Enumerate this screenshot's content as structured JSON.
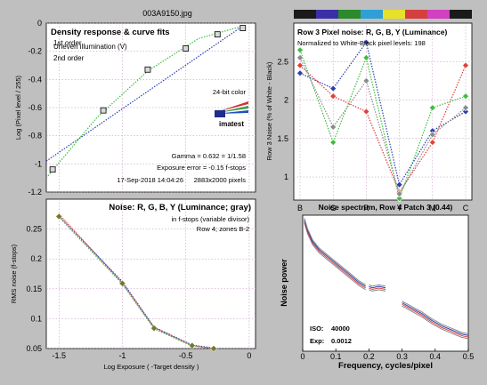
{
  "figure_title": "003A9150.jpg",
  "colors": {
    "figure_bg": "#bfbfbf",
    "panel_bg": "#ffffff",
    "grid": "#b98ab9",
    "red": "#e0403a",
    "green": "#3cbf3c",
    "blue": "#2c3fb0",
    "gray": "#8a8a8a",
    "olive": "#6f7a2b",
    "maroon": "#8b1a4a",
    "pink": "#e8a0a0",
    "strip": [
      "#1a1a1a",
      "#3b2fa8",
      "#2b8a2b",
      "#2f9fd6",
      "#e8e02a",
      "#d43f3f",
      "#d040c0",
      "#1a1a1a"
    ]
  },
  "chart_data": [
    {
      "id": "density",
      "type": "scatter",
      "title": "Density response & curve fits",
      "legend": [
        "1st order",
        "2nd order"
      ],
      "legend_overlay": "Uneven illumination (V)",
      "annotation_color": "24-bit color",
      "logo": "imatest",
      "xlabel": "",
      "ylabel": "Log (Pixel level / 255)",
      "xlim": [
        -1.6,
        0.05
      ],
      "ylim": [
        -1.2,
        0.0
      ],
      "xticks": [],
      "yticks": [
        0,
        -0.2,
        -0.4,
        -0.6,
        -0.8,
        -1,
        -1.2
      ],
      "ytick_labels": [
        "0",
        "-0.2",
        "-0.4",
        "-0.6",
        "-0.8",
        "-1",
        "-1.2"
      ],
      "gamma_text": "Gamma = 0.632 = 1/1.58",
      "exposure_text": "Exposure error = -0.15 f-stops",
      "date_text": "17-Sep-2018 14:04:26",
      "size_text": "2883x2000 pixels",
      "series": [
        {
          "name": "",
          "x": [
            -1.55,
            -1.15,
            -0.8,
            -0.5,
            -0.25,
            -0.05
          ],
          "y": [
            -1.04,
            -0.62,
            -0.33,
            -0.18,
            -0.08,
            -0.035
          ]
        }
      ],
      "fit_lines": [
        {
          "name": "1st order",
          "x": [
            -1.6,
            -0.05
          ],
          "y": [
            -0.98,
            -0.02
          ]
        },
        {
          "name": "2nd order",
          "x": [
            -1.6,
            -1.2,
            -0.8,
            -0.4,
            -0.05
          ],
          "y": [
            -1.1,
            -0.67,
            -0.34,
            -0.11,
            -0.02
          ]
        }
      ]
    },
    {
      "id": "row3-noise",
      "type": "line",
      "title": "Row 3 Pixel noise: R, G, B, Y (Luminance)",
      "subtitle": "Normalized to White-Black pixel levels: 198",
      "ylabel": "Row 3 Noise (% of White - Black)",
      "categories": [
        "B",
        "G",
        "R",
        "Y",
        "M",
        "C"
      ],
      "ylim": [
        0.7,
        3.0
      ],
      "yticks": [
        1,
        1.5,
        2,
        2.5
      ],
      "ytick_labels": [
        "1",
        "1.5",
        "2",
        "2.5"
      ],
      "series": [
        {
          "name": "R",
          "values": [
            2.45,
            2.05,
            1.85,
            0.8,
            1.45,
            2.45
          ]
        },
        {
          "name": "G",
          "values": [
            2.65,
            1.45,
            2.55,
            0.72,
            1.9,
            2.05
          ]
        },
        {
          "name": "B",
          "values": [
            2.35,
            2.15,
            2.75,
            0.9,
            1.6,
            1.85
          ]
        },
        {
          "name": "Y",
          "values": [
            2.55,
            1.65,
            2.25,
            0.78,
            1.55,
            1.9
          ]
        }
      ]
    },
    {
      "id": "noise-fstops",
      "type": "line",
      "title": "Noise: R, G, B, Y (Luminance; gray)",
      "subtitle": "in f-stops (variable divisor)",
      "subtitle2": "Row 4; zones B-2",
      "xlabel": "Log Exposure ( -Target density )",
      "ylabel": "RMS noise (f-stops)",
      "xlim": [
        -1.6,
        0.05
      ],
      "ylim": [
        0.05,
        0.3
      ],
      "xticks": [
        -1.5,
        -1,
        -0.5,
        0
      ],
      "xtick_labels": [
        "-1.5",
        "-1",
        "-0.5",
        "0"
      ],
      "yticks": [
        0.05,
        0.1,
        0.15,
        0.2,
        0.25
      ],
      "ytick_labels": [
        "0.05",
        "0.1",
        "0.15",
        "0.2",
        "0.25"
      ],
      "x": [
        -1.5,
        -1.0,
        -0.75,
        -0.45,
        -0.28
      ],
      "series": [
        {
          "name": "R",
          "values": [
            0.275,
            0.16,
            0.085,
            0.055,
            0.05
          ]
        },
        {
          "name": "G",
          "values": [
            0.27,
            0.158,
            0.083,
            0.054,
            0.05
          ]
        },
        {
          "name": "B",
          "values": [
            0.272,
            0.162,
            0.086,
            0.056,
            0.051
          ]
        },
        {
          "name": "Y",
          "values": [
            0.271,
            0.159,
            0.084,
            0.055,
            0.05
          ]
        }
      ]
    },
    {
      "id": "noise-spectrum",
      "type": "line",
      "title": "Noise spectrum, Row 4 Patch 3 (0.44)",
      "xlabel": "Frequency, cycles/pixel",
      "ylabel": "Noise power",
      "xlim": [
        0,
        0.5
      ],
      "ylim": [
        0,
        1.0
      ],
      "xticks": [
        0,
        0.1,
        0.2,
        0.3,
        0.4,
        0.5
      ],
      "xtick_labels": [
        "0",
        "0.1",
        "0.2",
        "0.3",
        "0.4",
        "0.5"
      ],
      "yticks": [],
      "iso_label": "ISO:",
      "iso_value": "40000",
      "exp_label": "Exp:",
      "exp_value": "0.0012",
      "segments": [
        {
          "x": [
            0.005,
            0.015,
            0.03,
            0.05,
            0.08,
            0.11,
            0.14,
            0.17,
            0.19
          ],
          "y": [
            0.96,
            0.88,
            0.8,
            0.74,
            0.68,
            0.62,
            0.56,
            0.5,
            0.47
          ]
        },
        {
          "x": [
            0.2,
            0.21,
            0.23,
            0.25
          ],
          "y": [
            0.47,
            0.46,
            0.47,
            0.46
          ]
        },
        {
          "x": [
            0.3,
            0.33,
            0.36,
            0.39,
            0.42,
            0.45,
            0.48,
            0.5
          ],
          "y": [
            0.35,
            0.31,
            0.27,
            0.22,
            0.18,
            0.15,
            0.12,
            0.11
          ]
        }
      ]
    }
  ]
}
